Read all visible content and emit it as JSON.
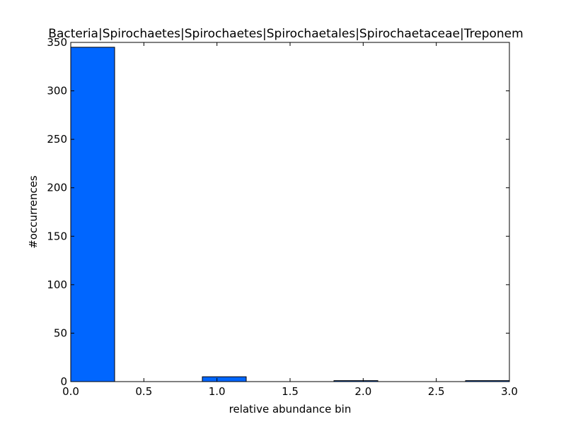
{
  "chart_data": {
    "type": "bar",
    "title": "Bacteria|Spirochaetes|Spirochaetes|Spirochaetales|Spirochaetaceae|Treponem",
    "xlabel": "relative abundance bin",
    "ylabel": "#occurrences",
    "xlim": [
      0,
      3
    ],
    "ylim": [
      0,
      350
    ],
    "x_ticks": [
      "0.0",
      "0.5",
      "1.0",
      "1.5",
      "2.0",
      "2.5",
      "3.0"
    ],
    "y_ticks": [
      "0",
      "50",
      "100",
      "150",
      "200",
      "250",
      "300",
      "350"
    ],
    "bins": [
      {
        "start": 0.0,
        "end": 0.3,
        "count": 345
      },
      {
        "start": 0.3,
        "end": 0.6,
        "count": 0
      },
      {
        "start": 0.6,
        "end": 0.9,
        "count": 0
      },
      {
        "start": 0.9,
        "end": 1.2,
        "count": 5
      },
      {
        "start": 1.2,
        "end": 1.5,
        "count": 0
      },
      {
        "start": 1.5,
        "end": 1.8,
        "count": 0
      },
      {
        "start": 1.8,
        "end": 2.1,
        "count": 1
      },
      {
        "start": 2.1,
        "end": 2.4,
        "count": 0
      },
      {
        "start": 2.4,
        "end": 2.7,
        "count": 0
      },
      {
        "start": 2.7,
        "end": 3.0,
        "count": 1
      }
    ],
    "bar_color": "#0066ff",
    "grid": false,
    "legend": "none"
  }
}
